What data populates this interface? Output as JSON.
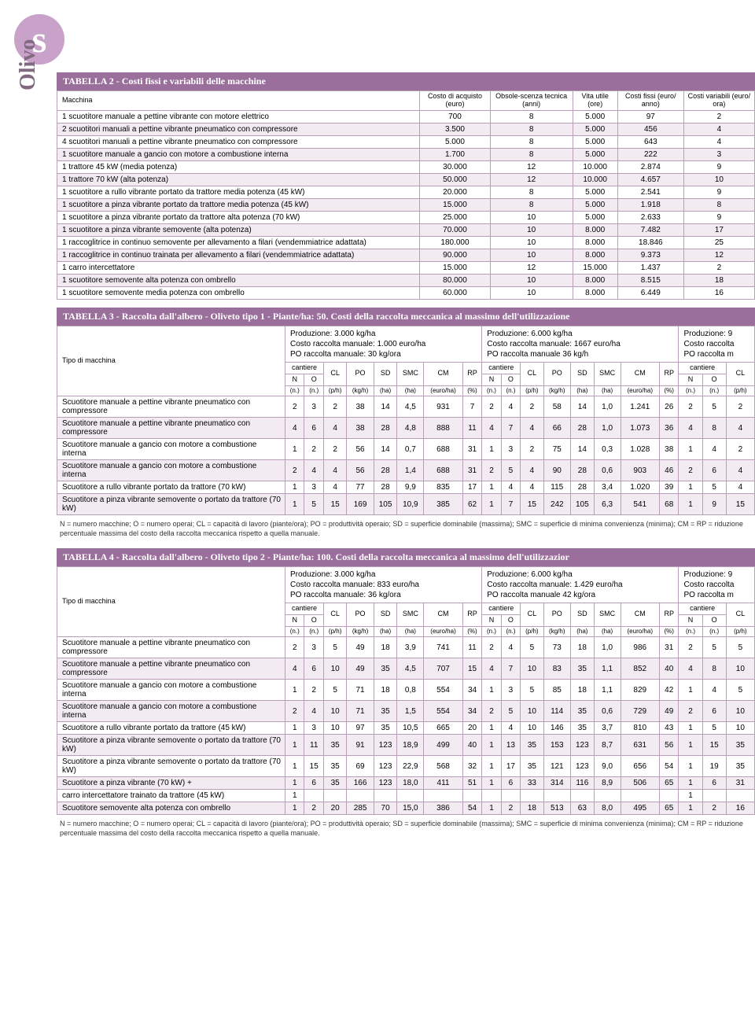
{
  "badge": "s",
  "side": "Olivo",
  "table2": {
    "title": "TABELLA 2 - Costi fissi e variabili delle macchine",
    "headers": [
      "Macchina",
      "Costo di acquisto (euro)",
      "Obsole-scenza tecnica (anni)",
      "Vita utile (ore)",
      "Costi fissi (euro/ anno)",
      "Costi variabili (euro/ ora)"
    ],
    "rows": [
      [
        "1 scuotitore manuale a pettine vibrante con motore elettrico",
        "700",
        "8",
        "5.000",
        "97",
        "2"
      ],
      [
        "2 scuotitori manuali a pettine vibrante pneumatico con compressore",
        "3.500",
        "8",
        "5.000",
        "456",
        "4"
      ],
      [
        "4 scuotitori manuali a pettine vibrante pneumatico con compressore",
        "5.000",
        "8",
        "5.000",
        "643",
        "4"
      ],
      [
        "1 scuotitore manuale a gancio con motore a combustione interna",
        "1.700",
        "8",
        "5.000",
        "222",
        "3"
      ],
      [
        "1 trattore 45 kW (media potenza)",
        "30.000",
        "12",
        "10.000",
        "2.874",
        "9"
      ],
      [
        "1 trattore 70 kW (alta potenza)",
        "50.000",
        "12",
        "10.000",
        "4.657",
        "10"
      ],
      [
        "1 scuotitore a rullo vibrante portato da trattore media potenza (45 kW)",
        "20.000",
        "8",
        "5.000",
        "2.541",
        "9"
      ],
      [
        "1 scuotitore a pinza vibrante portato da trattore media potenza (45 kW)",
        "15.000",
        "8",
        "5.000",
        "1.918",
        "8"
      ],
      [
        "1 scuotitore a pinza vibrante portato da trattore alta potenza (70 kW)",
        "25.000",
        "10",
        "5.000",
        "2.633",
        "9"
      ],
      [
        "1 scuotitore a pinza vibrante semovente (alta potenza)",
        "70.000",
        "10",
        "8.000",
        "7.482",
        "17"
      ],
      [
        "1 raccoglitrice in continuo semovente per allevamento a filari (vendemmiatrice adattata)",
        "180.000",
        "10",
        "8.000",
        "18.846",
        "25"
      ],
      [
        "1 raccoglitrice in continuo trainata per allevamento a filari (vendemmiatrice adattata)",
        "90.000",
        "10",
        "8.000",
        "9.373",
        "12"
      ],
      [
        "1 carro intercettatore",
        "15.000",
        "12",
        "15.000",
        "1.437",
        "2"
      ],
      [
        "1 scuotitore semovente alta potenza con ombrello",
        "80.000",
        "10",
        "8.000",
        "8.515",
        "18"
      ],
      [
        "1 scuotitore semovente media potenza con ombrello",
        "60.000",
        "10",
        "8.000",
        "6.449",
        "16"
      ]
    ]
  },
  "table3": {
    "title": "TABELLA 3 - Raccolta dall'albero - Oliveto tipo 1 - Piante/ha: 50. Costi della raccolta meccanica al massimo dell'utilizzazione",
    "typeHdr": "Tipo di macchina",
    "groups": [
      [
        "Produzione: 3.000 kg/ha",
        "Costo raccolta manuale: 1.000 euro/ha",
        "PO raccolta manuale: 30 kg/ora"
      ],
      [
        "Produzione: 6.000 kg/ha",
        "Costo raccolta manuale: 1667 euro/ha",
        "PO raccolta manuale 36 kg/h"
      ],
      [
        "Produzione: 9",
        "Costo raccolta",
        "PO raccolta m"
      ]
    ],
    "sub1": [
      "cantiere",
      "CL",
      "PO",
      "SD",
      "SMC",
      "CM",
      "RP"
    ],
    "sub2": [
      "N",
      "O"
    ],
    "units": [
      "(n.)",
      "(n.)",
      "(p/h)",
      "(kg/h)",
      "(ha)",
      "(ha)",
      "(euro/ha)",
      "(%)"
    ],
    "rows": [
      [
        "Scuotitore manuale a pettine vibrante pneumatico con compressore",
        "2",
        "3",
        "2",
        "38",
        "14",
        "4,5",
        "931",
        "7",
        "2",
        "4",
        "2",
        "58",
        "14",
        "1,0",
        "1.241",
        "26",
        "2",
        "5",
        "2"
      ],
      [
        "Scuotitore manuale a pettine vibrante pneumatico con compressore",
        "4",
        "6",
        "4",
        "38",
        "28",
        "4,8",
        "888",
        "11",
        "4",
        "7",
        "4",
        "66",
        "28",
        "1,0",
        "1.073",
        "36",
        "4",
        "8",
        "4"
      ],
      [
        "Scuotitore manuale a gancio con motore a combustione interna",
        "1",
        "2",
        "2",
        "56",
        "14",
        "0,7",
        "688",
        "31",
        "1",
        "3",
        "2",
        "75",
        "14",
        "0,3",
        "1.028",
        "38",
        "1",
        "4",
        "2"
      ],
      [
        "Scuotitore manuale a gancio con motore a combustione interna",
        "2",
        "4",
        "4",
        "56",
        "28",
        "1,4",
        "688",
        "31",
        "2",
        "5",
        "4",
        "90",
        "28",
        "0,6",
        "903",
        "46",
        "2",
        "6",
        "4"
      ],
      [
        "Scuotitore a rullo vibrante portato da trattore (70 kW)",
        "1",
        "3",
        "4",
        "77",
        "28",
        "9,9",
        "835",
        "17",
        "1",
        "4",
        "4",
        "115",
        "28",
        "3,4",
        "1.020",
        "39",
        "1",
        "5",
        "4"
      ],
      [
        "Scuotitore a pinza vibrante semovente o portato da trattore (70 kW)",
        "1",
        "5",
        "15",
        "169",
        "105",
        "10,9",
        "385",
        "62",
        "1",
        "7",
        "15",
        "242",
        "105",
        "6,3",
        "541",
        "68",
        "1",
        "9",
        "15"
      ]
    ],
    "note": "N = numero macchine; O = numero operai; CL = capacità di lavoro (piante/ora); PO = produttività operaio; SD = superficie dominabile (massima); SMC = superficie di minima convenienza (minima); CM = RP = riduzione percentuale massima del costo della raccolta meccanica rispetto a quella manuale."
  },
  "table4": {
    "title": "TABELLA 4 - Raccolta dall'albero - Oliveto tipo 2 - Piante/ha: 100. Costi della raccolta meccanica al massimo dell'utilizzazior",
    "typeHdr": "Tipo di macchina",
    "groups": [
      [
        "Produzione: 3.000 kg/ha",
        "Costo raccolta manuale: 833 euro/ha",
        "PO raccolta manuale: 36 kg/ora"
      ],
      [
        "Produzione: 6.000 kg/ha",
        "Costo raccolta manuale: 1.429 euro/ha",
        "PO raccolta manuale 42 kg/ora"
      ],
      [
        "Produzione: 9",
        "Costo raccolta",
        "PO raccolta m"
      ]
    ],
    "rows": [
      [
        "Scuotitore manuale a pettine vibrante pneumatico con compressore",
        "2",
        "3",
        "5",
        "49",
        "18",
        "3,9",
        "741",
        "11",
        "2",
        "4",
        "5",
        "73",
        "18",
        "1,0",
        "986",
        "31",
        "2",
        "5",
        "5"
      ],
      [
        "Scuotitore manuale a pettine vibrante pneumatico con compressore",
        "4",
        "6",
        "10",
        "49",
        "35",
        "4,5",
        "707",
        "15",
        "4",
        "7",
        "10",
        "83",
        "35",
        "1,1",
        "852",
        "40",
        "4",
        "8",
        "10"
      ],
      [
        "Scuotitore manuale a gancio con motore a combustione interna",
        "1",
        "2",
        "5",
        "71",
        "18",
        "0,8",
        "554",
        "34",
        "1",
        "3",
        "5",
        "85",
        "18",
        "1,1",
        "829",
        "42",
        "1",
        "4",
        "5"
      ],
      [
        "Scuotitore manuale a gancio con motore a combustione interna",
        "2",
        "4",
        "10",
        "71",
        "35",
        "1,5",
        "554",
        "34",
        "2",
        "5",
        "10",
        "114",
        "35",
        "0,6",
        "729",
        "49",
        "2",
        "6",
        "10"
      ],
      [
        "Scuotitore a rullo vibrante portato da trattore (45 kW)",
        "1",
        "3",
        "10",
        "97",
        "35",
        "10,5",
        "665",
        "20",
        "1",
        "4",
        "10",
        "146",
        "35",
        "3,7",
        "810",
        "43",
        "1",
        "5",
        "10"
      ],
      [
        "Scuotitore a pinza vibrante semovente o portato da trattore (70 kW)",
        "1",
        "11",
        "35",
        "91",
        "123",
        "18,9",
        "499",
        "40",
        "1",
        "13",
        "35",
        "153",
        "123",
        "8,7",
        "631",
        "56",
        "1",
        "15",
        "35"
      ],
      [
        "Scuotitore a pinza vibrante semovente o portato da trattore (70 kW)",
        "1",
        "15",
        "35",
        "69",
        "123",
        "22,9",
        "568",
        "32",
        "1",
        "17",
        "35",
        "121",
        "123",
        "9,0",
        "656",
        "54",
        "1",
        "19",
        "35"
      ]
    ],
    "split": {
      "label1": "Scuotitore a pinza vibrante (70 kW) +",
      "label2": " carro intercettatore trainato da trattore (45 kW)",
      "r1": [
        "1",
        "6",
        "35",
        "166",
        "123",
        "18,0",
        "411",
        "51",
        "1",
        "6",
        "33",
        "314",
        "116",
        "8,9",
        "506",
        "65",
        "1",
        "6",
        "31"
      ],
      "r2": [
        "1",
        "",
        "",
        "",
        "",
        "",
        "",
        "",
        "",
        "",
        "",
        "",
        "",
        "",
        "",
        "",
        "1",
        "",
        ""
      ]
    },
    "last": [
      "Scuotitore semovente alta potenza con ombrello",
      "1",
      "2",
      "20",
      "285",
      "70",
      "15,0",
      "386",
      "54",
      "1",
      "2",
      "18",
      "513",
      "63",
      "8,0",
      "495",
      "65",
      "1",
      "2",
      "16"
    ],
    "note": "N = numero macchine; O = numero operai; CL = capacità di lavoro (piante/ora); PO = produttività operaio; SD = superficie dominabile (massima); SMC = superficie di minima convenienza (minima); CM = RP = riduzione percentuale massima del costo della raccolta meccanica rispetto a quella manuale."
  }
}
